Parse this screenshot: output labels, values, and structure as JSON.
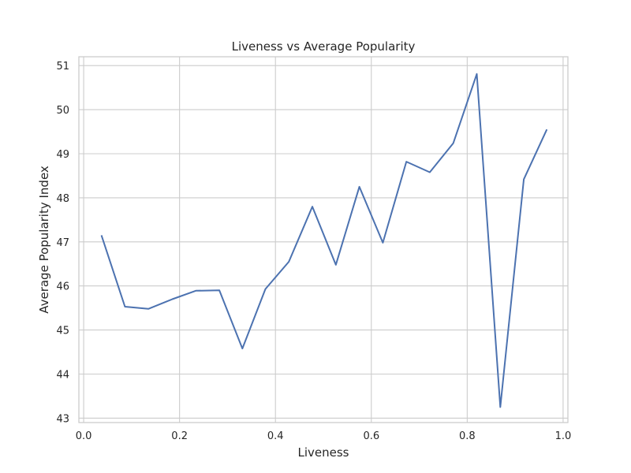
{
  "chart_data": {
    "type": "line",
    "title": "Liveness vs Average Popularity",
    "xlabel": "Liveness",
    "ylabel": "Average Popularity Index",
    "xlim": [
      -0.01,
      1.01
    ],
    "ylim": [
      42.9,
      51.2
    ],
    "xticks": [
      0.0,
      0.2,
      0.4,
      0.6,
      0.8,
      1.0
    ],
    "xtick_labels": [
      "0.0",
      "0.2",
      "0.4",
      "0.6",
      "0.8",
      "1.0"
    ],
    "yticks": [
      43,
      44,
      45,
      46,
      47,
      48,
      49,
      50,
      51
    ],
    "ytick_labels": [
      "43",
      "44",
      "45",
      "46",
      "47",
      "48",
      "49",
      "50",
      "51"
    ],
    "grid": true,
    "legend": "none",
    "colors": {
      "line": "#4c72b0",
      "grid": "#cccccc",
      "text": "#262626"
    },
    "series": [
      {
        "x": [
          0.037,
          0.086,
          0.135,
          0.185,
          0.234,
          0.283,
          0.331,
          0.379,
          0.428,
          0.477,
          0.526,
          0.575,
          0.624,
          0.673,
          0.722,
          0.771,
          0.82,
          0.869,
          0.918,
          0.966
        ],
        "y": [
          47.15,
          45.53,
          45.48,
          45.7,
          45.89,
          45.9,
          44.58,
          45.93,
          46.55,
          47.8,
          46.48,
          48.25,
          46.98,
          48.82,
          48.58,
          49.24,
          50.81,
          43.25,
          48.42,
          49.55
        ]
      }
    ]
  }
}
